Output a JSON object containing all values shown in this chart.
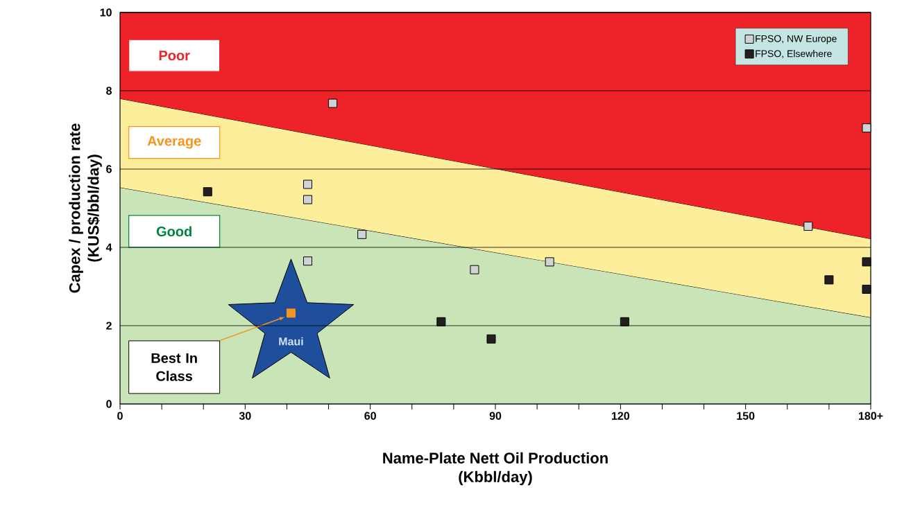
{
  "chart_data": {
    "type": "scatter",
    "xlabel": "Name-Plate Nett Oil Production\n(Kbbl/day)",
    "ylabel": "Capex / production rate\n(KUS$/bbl/day)",
    "xlim": [
      0,
      180
    ],
    "ylim": [
      0,
      10
    ],
    "xticks": [
      0,
      {
        "value": 10,
        "label": null
      },
      {
        "value": 20,
        "label": null
      },
      30,
      {
        "value": 40,
        "label": null
      },
      {
        "value": 50,
        "label": null
      },
      60,
      {
        "value": 70,
        "label": null
      },
      {
        "value": 80,
        "label": null
      },
      90,
      {
        "value": 100,
        "label": null
      },
      {
        "value": 110,
        "label": null
      },
      120,
      {
        "value": 130,
        "label": null
      },
      {
        "value": 140,
        "label": null
      },
      150,
      {
        "value": 160,
        "label": null
      },
      {
        "value": 170,
        "label": null
      },
      {
        "value": 180,
        "label": "180+"
      }
    ],
    "yticks": [
      0,
      2,
      4,
      6,
      8,
      10
    ],
    "grid": "y",
    "legend": "top right",
    "marker": "square",
    "stacked": true,
    "series": [
      {
        "type": "area",
        "marker": "none",
        "color": "#c9e4b7",
        "x": [
          0,
          180
        ],
        "values": [
          5.53,
          2.21
        ]
      },
      {
        "type": "area",
        "marker": "none",
        "color": "#fcee9a",
        "x": [
          0,
          180
        ],
        "values": [
          2.27,
          2.01
        ]
      },
      {
        "type": "area",
        "marker": "none",
        "color": "#ee2229",
        "x": [
          0,
          180
        ],
        "values": [
          2.2,
          5.78
        ]
      },
      {
        "name": "FPSO, NW Europe",
        "color": "#d1d2d4",
        "x": [
          51,
          179,
          45,
          45,
          58,
          45,
          85,
          103,
          165
        ],
        "values": [
          7.68,
          7.05,
          5.61,
          5.22,
          4.33,
          3.65,
          3.43,
          3.63,
          4.54
        ]
      },
      {
        "name": "FPSO, Elsewhere",
        "color": "#231f20",
        "x": [
          21,
          77,
          89,
          121,
          170,
          179,
          179
        ],
        "values": [
          5.42,
          2.1,
          1.66,
          2.1,
          3.17,
          3.63,
          2.93
        ]
      },
      {
        "color": "#f7941d",
        "x": [
          41
        ],
        "values": [
          2.32
        ]
      }
    ],
    "annotations": [
      "Poor",
      "Average",
      "Good",
      "Best In Class",
      "Maui"
    ]
  }
}
